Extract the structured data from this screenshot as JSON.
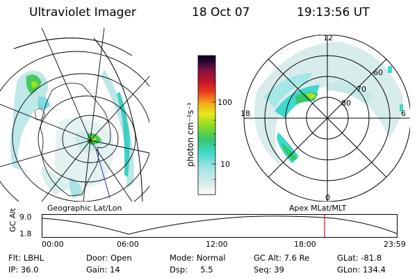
{
  "header": {
    "instrument": "Ultraviolet Imager",
    "date": "18 Oct 07",
    "time": "19:13:56 UT"
  },
  "geo_map": {
    "caption": "Geographic Lat/Lon"
  },
  "polar_map": {
    "caption": "Apex MLat/MLT",
    "mlt_labels": {
      "top": "12",
      "left": "18",
      "right": "6",
      "bottom": "0"
    },
    "lat_labels": [
      "60",
      "70",
      "80"
    ]
  },
  "colorbar": {
    "unit_label": "photon cm⁻²s⁻¹",
    "ticks": [
      "100",
      "10"
    ],
    "scale": "log",
    "colors": [
      "#ffffff",
      "#d8ecec",
      "#9fe4e4",
      "#3fd8cc",
      "#35c76a",
      "#93dd1e",
      "#e8e81a",
      "#f6a51a",
      "#ea3a1e",
      "#c0142a",
      "#7d1040",
      "#2b0838",
      "#05041a"
    ]
  },
  "altitude_plot": {
    "ylabel": "GC Alt",
    "y_ticks": [
      "9.0",
      "1.8"
    ],
    "x_ticks": [
      "00:00",
      "06:00",
      "12:00",
      "18:00",
      "23:59"
    ],
    "marker_color": "#e01010"
  },
  "status": {
    "row1": [
      {
        "text": "Flt: LBHL"
      },
      {
        "text": "Door: Open"
      },
      {
        "text": "Mode: Normal"
      },
      {
        "text": "GC Alt: 7.6 Re"
      },
      {
        "text": "GLat: -81.8"
      }
    ],
    "row2": [
      {
        "text": "IP: 36.0"
      },
      {
        "text": "Gain: 14"
      },
      {
        "text": "Dsp:     5.5"
      },
      {
        "text": "Seq: 39"
      },
      {
        "text": "GLon: 134.4"
      }
    ]
  }
}
